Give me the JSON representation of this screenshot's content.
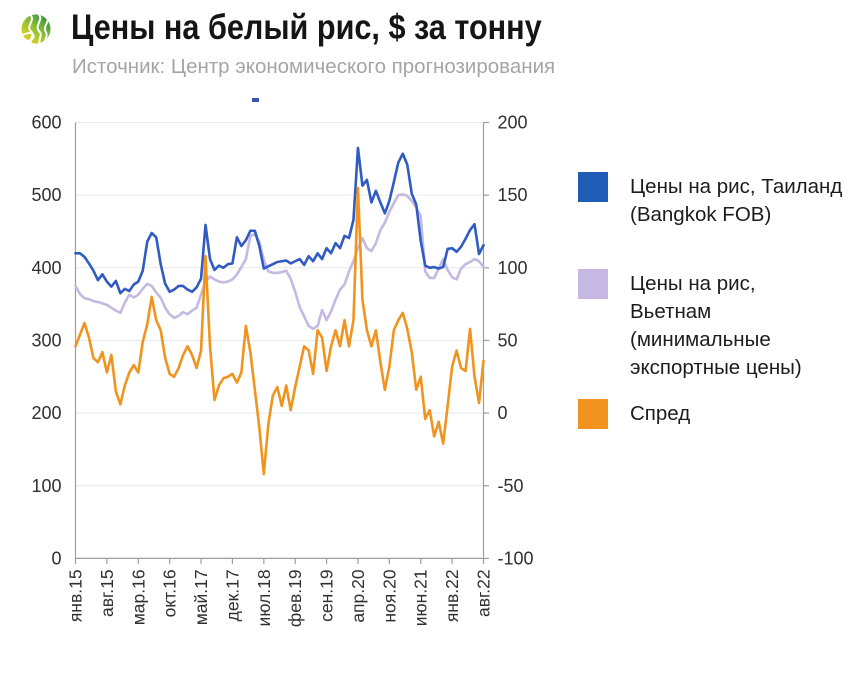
{
  "header": {
    "title": "Цены на белый рис, $ за тонну",
    "subtitle": "Источник: Центр экономического прогнозирования"
  },
  "legend": {
    "items": [
      {
        "label": "Цены на рис, Таиланд\n(Bangkok FOB)",
        "color": "#1f5db6"
      },
      {
        "label": "Цены на рис,\nВьетнам\n(минимальные\nэкспортные цены)",
        "color": "#c5b9e3"
      },
      {
        "label": "Спред",
        "color": "#f0941f"
      }
    ]
  },
  "colors": {
    "thailand": "#2f5bc2",
    "vietnam": "#c5b9e3",
    "spread": "#f0941f",
    "axis_line": "#9d9d9d",
    "grid_line": "#e9e9e9",
    "axis_text": "#303030",
    "title_text": "#151515",
    "subtitle_text": "#a5a5a5"
  },
  "chart_data": {
    "type": "line",
    "title": "Цены на белый рис, $ за тонну",
    "x_start": "янв.15",
    "x_end": "авг.22",
    "months_total": 92,
    "x_tick_labels": [
      "янв.15",
      "авг.15",
      "мар.16",
      "окт.16",
      "май.17",
      "дек.17",
      "июл.18",
      "фев.19",
      "сен.19",
      "апр.20",
      "ноя.20",
      "июн.21",
      "янв.22",
      "авг.22"
    ],
    "x_tick_months": [
      0,
      7,
      14,
      21,
      28,
      35,
      42,
      49,
      56,
      63,
      70,
      77,
      84,
      91
    ],
    "left_axis": {
      "min": 0,
      "max": 600,
      "step": 100,
      "tick_labels": [
        "600",
        "500",
        "400",
        "300",
        "200",
        "100",
        "0"
      ]
    },
    "right_axis": {
      "min": -100,
      "max": 200,
      "step": 50,
      "tick_labels": [
        "200",
        "150",
        "100",
        "50",
        "0",
        "-50",
        "-100"
      ]
    },
    "grid": "horizontal",
    "legend_position": "right",
    "series": [
      {
        "name": "Цены на рис, Таиланд (Bangkok FOB)",
        "axis": "left",
        "color": "#2f5bc2",
        "values": [
          420,
          420,
          415,
          406,
          396,
          383,
          391,
          381,
          374,
          382,
          365,
          371,
          368,
          377,
          381,
          396,
          436,
          448,
          442,
          405,
          378,
          367,
          370,
          375,
          375,
          370,
          367,
          373,
          385,
          459,
          412,
          397,
          403,
          400,
          405,
          406,
          442,
          430,
          438,
          451,
          451,
          430,
          399,
          402,
          405,
          408,
          409,
          410,
          406,
          409,
          412,
          404,
          416,
          409,
          420,
          412,
          427,
          420,
          434,
          427,
          444,
          441,
          466,
          565,
          513,
          521,
          490,
          506,
          490,
          475,
          492,
          518,
          545,
          557,
          542,
          502,
          487,
          437,
          403,
          400,
          401,
          399,
          401,
          426,
          427,
          422,
          429,
          440,
          452,
          460,
          419,
          431
        ]
      },
      {
        "name": "Цены на рис, Вьетнам (минимальные экспортные цены)",
        "axis": "left",
        "color": "#c5b9e3",
        "values": [
          375,
          364,
          358,
          357,
          354,
          353,
          351,
          349,
          345,
          341,
          338,
          352,
          363,
          359,
          363,
          371,
          378,
          375,
          366,
          359,
          345,
          336,
          331,
          334,
          339,
          336,
          341,
          345,
          363,
          381,
          388,
          384,
          381,
          380,
          381,
          384,
          391,
          401,
          412,
          444,
          446,
          436,
          411,
          395,
          393,
          393,
          394,
          396,
          385,
          367,
          346,
          333,
          320,
          316,
          320,
          342,
          328,
          340,
          356,
          370,
          377,
          395,
          409,
          427,
          441,
          427,
          423,
          434,
          452,
          462,
          477,
          489,
          500,
          501,
          499,
          492,
          483,
          471,
          395,
          386,
          386,
          399,
          412,
          397,
          387,
          384,
          399,
          405,
          408,
          412,
          409,
          401
        ]
      },
      {
        "name": "Спред",
        "axis": "right",
        "color": "#f0941f",
        "values": [
          46,
          54,
          62,
          52,
          38,
          35,
          42,
          28,
          40,
          15,
          6,
          19,
          28,
          33,
          28,
          49,
          61,
          80,
          64,
          57,
          38,
          27,
          25,
          31,
          40,
          46,
          40,
          31,
          43,
          108,
          46,
          9,
          19,
          24,
          25,
          27,
          21,
          28,
          60,
          42,
          16,
          -10,
          -42,
          -8,
          12,
          18,
          5,
          19,
          2,
          18,
          32,
          46,
          43,
          27,
          57,
          52,
          29,
          46,
          57,
          46,
          64,
          46,
          64,
          155,
          78,
          57,
          46,
          57,
          35,
          16,
          32,
          57,
          64,
          69,
          58,
          42,
          16,
          25,
          -4,
          2,
          -16,
          -6,
          -21,
          5,
          32,
          43,
          31,
          29,
          58,
          25,
          7,
          36
        ]
      }
    ]
  }
}
